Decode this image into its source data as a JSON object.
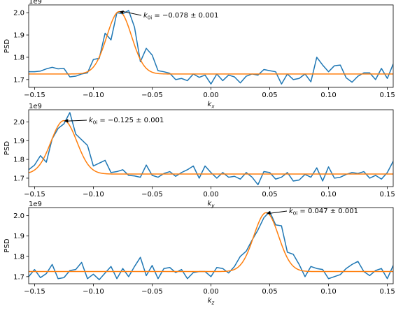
{
  "chart_data": [
    {
      "type": "line",
      "xlabel_base": "k",
      "xlabel_sub": "x",
      "ylabel": "PSD",
      "offset_text": "1e9",
      "xlim": [
        -0.155,
        0.155
      ],
      "ylim": [
        1.665,
        2.035
      ],
      "xticks": [
        -0.15,
        -0.1,
        -0.05,
        0.0,
        0.05,
        0.1,
        0.15
      ],
      "xtick_labels": [
        "−0.15",
        "−0.10",
        "−0.05",
        "0.00",
        "0.05",
        "0.10",
        "0.15"
      ],
      "yticks": [
        1.7,
        1.8,
        1.9,
        2.0
      ],
      "ytick_labels": [
        "1.7",
        "1.8",
        "1.9",
        "2.0"
      ],
      "series": [
        {
          "color": "#1f77b4",
          "x": [
            -0.155,
            -0.15,
            -0.145,
            -0.14,
            -0.135,
            -0.13,
            -0.125,
            -0.12,
            -0.115,
            -0.11,
            -0.105,
            -0.1,
            -0.095,
            -0.09,
            -0.085,
            -0.08,
            -0.075,
            -0.07,
            -0.065,
            -0.06,
            -0.055,
            -0.05,
            -0.045,
            -0.04,
            -0.035,
            -0.03,
            -0.025,
            -0.02,
            -0.015,
            -0.01,
            -0.005,
            0.0,
            0.005,
            0.01,
            0.015,
            0.02,
            0.025,
            0.03,
            0.035,
            0.04,
            0.045,
            0.05,
            0.055,
            0.06,
            0.065,
            0.07,
            0.075,
            0.08,
            0.085,
            0.09,
            0.095,
            0.1,
            0.105,
            0.11,
            0.115,
            0.12,
            0.125,
            0.13,
            0.135,
            0.14,
            0.145,
            0.15,
            0.155
          ],
          "values": [
            1.735,
            1.735,
            1.738,
            1.748,
            1.755,
            1.748,
            1.75,
            1.712,
            1.715,
            1.725,
            1.73,
            1.79,
            1.795,
            1.908,
            1.878,
            2.0,
            1.995,
            2.01,
            1.935,
            1.78,
            1.84,
            1.81,
            1.74,
            1.735,
            1.728,
            1.7,
            1.705,
            1.695,
            1.725,
            1.71,
            1.72,
            1.68,
            1.725,
            1.695,
            1.72,
            1.712,
            1.685,
            1.715,
            1.725,
            1.72,
            1.745,
            1.74,
            1.735,
            1.68,
            1.725,
            1.7,
            1.705,
            1.725,
            1.69,
            1.8,
            1.765,
            1.735,
            1.762,
            1.765,
            1.708,
            1.688,
            1.715,
            1.73,
            1.73,
            1.7,
            1.75,
            1.705,
            1.77
          ]
        },
        {
          "color": "#ff7f0e",
          "fit": {
            "center": -0.078,
            "amplitude": 0.28,
            "sigma": 0.0105,
            "baseline": 1.725
          }
        }
      ],
      "annotation": {
        "text_base": "k",
        "text_sub": "0i",
        "text_value": " = −0.078 ± 0.001",
        "point_x": -0.078,
        "point_y": 2.005
      }
    },
    {
      "type": "line",
      "xlabel_base": "k",
      "xlabel_sub": "y",
      "ylabel": "PSD",
      "offset_text": "1e9",
      "xlim": [
        -0.155,
        0.155
      ],
      "ylim": [
        1.655,
        2.065
      ],
      "xticks": [
        -0.15,
        -0.1,
        -0.05,
        0.0,
        0.05,
        0.1,
        0.15
      ],
      "xtick_labels": [
        "−0.15",
        "−0.10",
        "−0.05",
        "0.00",
        "0.05",
        "0.10",
        "0.15"
      ],
      "yticks": [
        1.7,
        1.8,
        1.9,
        2.0
      ],
      "ytick_labels": [
        "1.7",
        "1.8",
        "1.9",
        "2.0"
      ],
      "series": [
        {
          "color": "#1f77b4",
          "x": [
            -0.155,
            -0.15,
            -0.145,
            -0.14,
            -0.135,
            -0.13,
            -0.125,
            -0.12,
            -0.115,
            -0.11,
            -0.105,
            -0.1,
            -0.095,
            -0.09,
            -0.085,
            -0.08,
            -0.075,
            -0.07,
            -0.065,
            -0.06,
            -0.055,
            -0.05,
            -0.045,
            -0.04,
            -0.035,
            -0.03,
            -0.025,
            -0.02,
            -0.015,
            -0.01,
            -0.005,
            0.0,
            0.005,
            0.01,
            0.015,
            0.02,
            0.025,
            0.03,
            0.035,
            0.04,
            0.045,
            0.05,
            0.055,
            0.06,
            0.065,
            0.07,
            0.075,
            0.08,
            0.085,
            0.09,
            0.095,
            0.1,
            0.105,
            0.11,
            0.115,
            0.12,
            0.125,
            0.13,
            0.135,
            0.14,
            0.145,
            0.15,
            0.155
          ],
          "values": [
            1.745,
            1.77,
            1.82,
            1.785,
            1.91,
            1.965,
            1.99,
            2.05,
            1.935,
            1.905,
            1.875,
            1.765,
            1.78,
            1.795,
            1.73,
            1.735,
            1.745,
            1.715,
            1.712,
            1.705,
            1.77,
            1.715,
            1.705,
            1.725,
            1.735,
            1.71,
            1.73,
            1.745,
            1.765,
            1.7,
            1.765,
            1.73,
            1.7,
            1.73,
            1.705,
            1.71,
            1.695,
            1.73,
            1.705,
            1.665,
            1.735,
            1.73,
            1.695,
            1.705,
            1.73,
            1.685,
            1.69,
            1.72,
            1.705,
            1.755,
            1.685,
            1.76,
            1.7,
            1.705,
            1.72,
            1.73,
            1.725,
            1.735,
            1.7,
            1.715,
            1.695,
            1.73,
            1.79
          ]
        },
        {
          "color": "#ff7f0e",
          "fit": {
            "center": -0.125,
            "amplitude": 0.285,
            "sigma": 0.011,
            "baseline": 1.722
          }
        }
      ],
      "annotation": {
        "text_base": "k",
        "text_sub": "0i",
        "text_value": " = −0.125 ± 0.001",
        "point_x": -0.125,
        "point_y": 2.005
      }
    },
    {
      "type": "line",
      "xlabel_base": "k",
      "xlabel_sub": "z",
      "ylabel": "PSD",
      "offset_text": "1e9",
      "xlim": [
        -0.155,
        0.155
      ],
      "ylim": [
        1.665,
        2.04
      ],
      "xticks": [
        -0.15,
        -0.1,
        -0.05,
        0.0,
        0.05,
        0.1,
        0.15
      ],
      "xtick_labels": [
        "−0.15",
        "−0.10",
        "−0.05",
        "0.00",
        "0.05",
        "0.10",
        "0.15"
      ],
      "yticks": [
        1.7,
        1.8,
        1.9,
        2.0
      ],
      "ytick_labels": [
        "1.7",
        "1.8",
        "1.9",
        "2.0"
      ],
      "series": [
        {
          "color": "#1f77b4",
          "x": [
            -0.155,
            -0.15,
            -0.145,
            -0.14,
            -0.135,
            -0.13,
            -0.125,
            -0.12,
            -0.115,
            -0.11,
            -0.105,
            -0.1,
            -0.095,
            -0.09,
            -0.085,
            -0.08,
            -0.075,
            -0.07,
            -0.065,
            -0.06,
            -0.055,
            -0.05,
            -0.045,
            -0.04,
            -0.035,
            -0.03,
            -0.025,
            -0.02,
            -0.015,
            -0.01,
            -0.005,
            0.0,
            0.005,
            0.01,
            0.015,
            0.02,
            0.025,
            0.03,
            0.035,
            0.04,
            0.045,
            0.05,
            0.055,
            0.06,
            0.065,
            0.07,
            0.075,
            0.08,
            0.085,
            0.09,
            0.095,
            0.1,
            0.105,
            0.11,
            0.115,
            0.12,
            0.125,
            0.13,
            0.135,
            0.14,
            0.145,
            0.15,
            0.155
          ],
          "values": [
            1.7,
            1.735,
            1.695,
            1.715,
            1.76,
            1.69,
            1.695,
            1.73,
            1.735,
            1.77,
            1.69,
            1.712,
            1.685,
            1.718,
            1.75,
            1.69,
            1.74,
            1.7,
            1.75,
            1.795,
            1.705,
            1.755,
            1.69,
            1.74,
            1.745,
            1.72,
            1.735,
            1.69,
            1.72,
            1.725,
            1.725,
            1.7,
            1.745,
            1.74,
            1.718,
            1.75,
            1.8,
            1.825,
            1.88,
            1.93,
            1.99,
            2.02,
            1.955,
            1.95,
            1.82,
            1.81,
            1.76,
            1.7,
            1.75,
            1.74,
            1.735,
            1.69,
            1.7,
            1.71,
            1.74,
            1.76,
            1.775,
            1.725,
            1.705,
            1.73,
            1.74,
            1.69,
            1.755
          ]
        },
        {
          "color": "#ff7f0e",
          "fit": {
            "center": 0.047,
            "amplitude": 0.29,
            "sigma": 0.0105,
            "baseline": 1.725
          }
        }
      ],
      "annotation": {
        "text_base": "k",
        "text_sub": "0i",
        "text_value": " = 0.047 ± 0.001",
        "point_x": 0.047,
        "point_y": 2.012
      }
    }
  ]
}
